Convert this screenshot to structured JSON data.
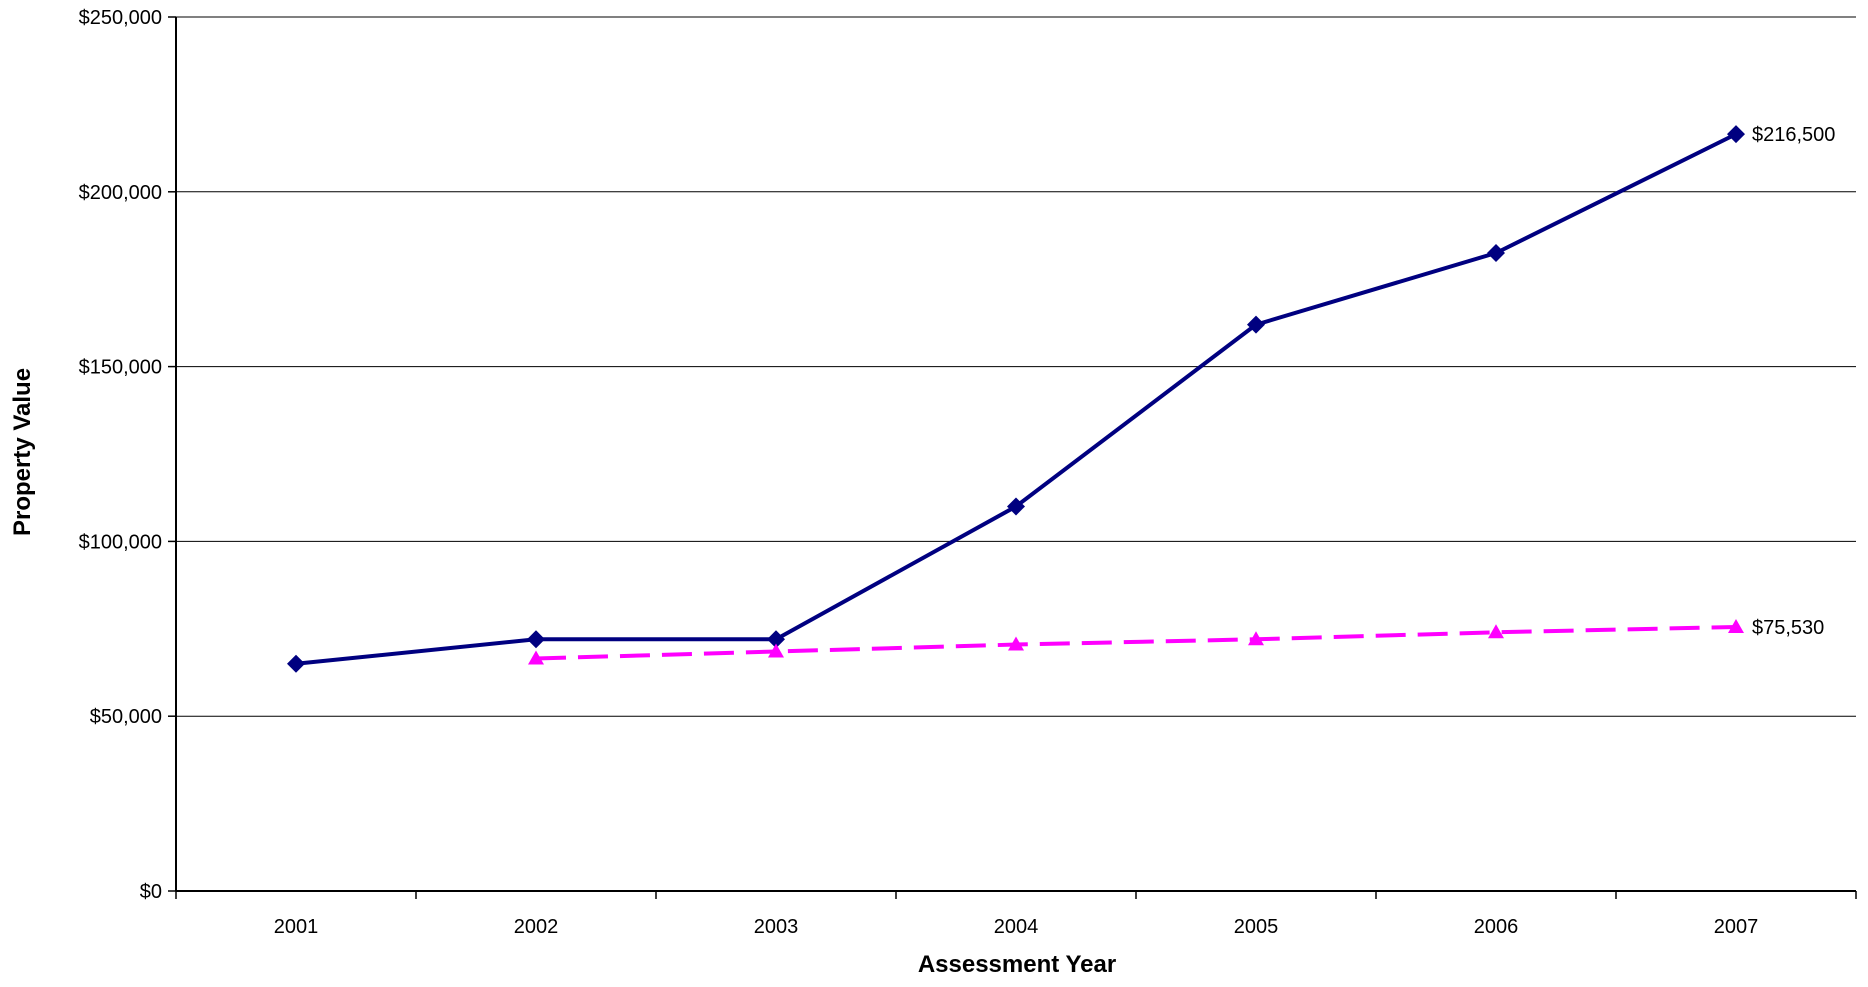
{
  "chart_data": {
    "type": "line",
    "title": "",
    "xlabel": "Assessment Year",
    "ylabel": "Property Value",
    "categories": [
      "2001",
      "2002",
      "2003",
      "2004",
      "2005",
      "2006",
      "2007"
    ],
    "ylim": [
      0,
      250000
    ],
    "yticks": [
      0,
      50000,
      100000,
      150000,
      200000,
      250000
    ],
    "ytick_labels": [
      "$0",
      "$50,000",
      "$100,000",
      "$150,000",
      "$200,000",
      "$250,000"
    ],
    "grid": "horizontal",
    "legend": "none",
    "series": [
      {
        "values": [
          65000,
          72000,
          72000,
          110000,
          162000,
          182500,
          216500
        ],
        "color": "#000080",
        "marker": "diamond",
        "line_style": "solid",
        "end_label": "$216,500"
      },
      {
        "values": [
          null,
          66500,
          68500,
          70500,
          72000,
          74000,
          75530
        ],
        "color": "#ff00ff",
        "marker": "triangle",
        "line_style": "dashed",
        "end_label": "$75,530"
      }
    ]
  }
}
